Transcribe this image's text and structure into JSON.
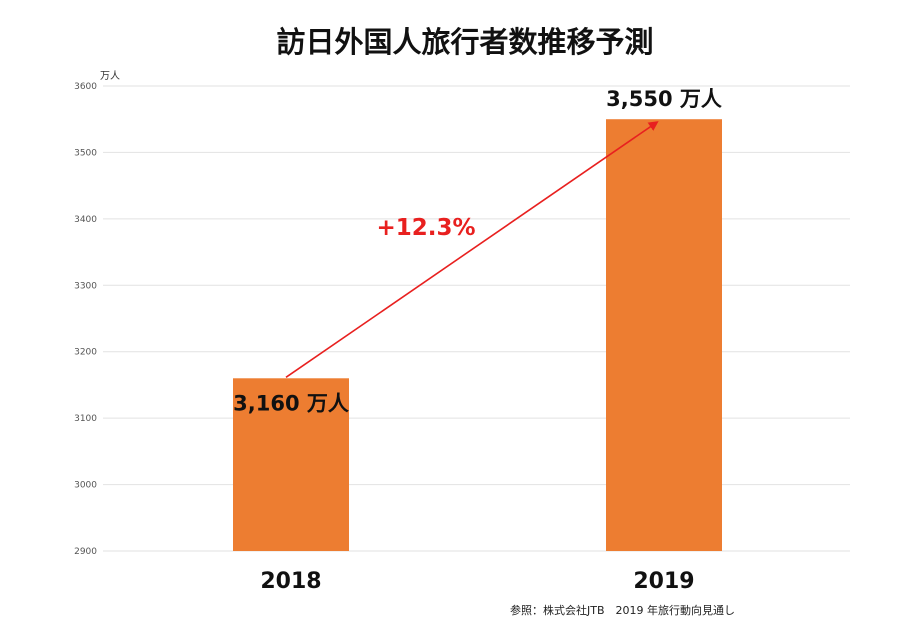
{
  "chart_data": {
    "type": "bar",
    "title": "訪日外国人旅行者数推移予測",
    "unit_label": "万人",
    "categories": [
      "2018",
      "2019"
    ],
    "values": [
      3160,
      3550
    ],
    "value_labels": [
      "3,160 万人",
      "3,550 万人"
    ],
    "ylim": [
      2900,
      3600
    ],
    "yticks": [
      2900,
      3000,
      3100,
      3200,
      3300,
      3400,
      3500,
      3600
    ],
    "grid": true,
    "annotation": {
      "text": "+12.3%",
      "from_category": "2018",
      "to_category": "2019"
    },
    "source": "参照：株式会社JTB　2019 年旅行動向見通し"
  },
  "colors": {
    "bar": "#ED7D31",
    "arrow": "#E8201F",
    "grid": "#E2E2E2",
    "text": "#111111"
  }
}
